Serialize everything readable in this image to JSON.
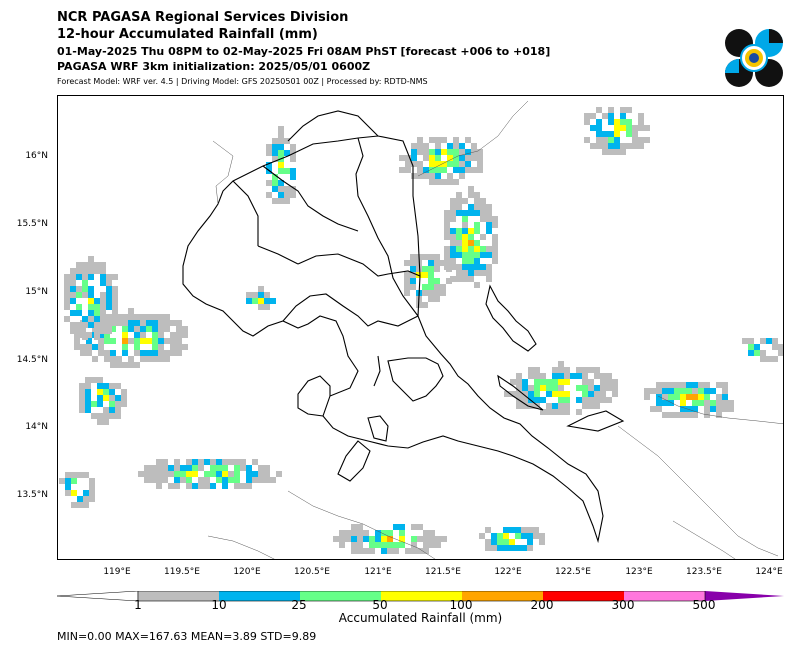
{
  "header": {
    "agency": "NCR PAGASA Regional Services Division",
    "product": "12-hour Accumulated Rainfall (mm)",
    "valid_period": "01-May-2025 Thu 08PM to 02-May-2025 Fri 08AM PhST [forecast +006 to +018]",
    "initialization": "PAGASA WRF 3km initialization: 2025/05/01 0600Z",
    "model_info": "Forecast Model: WRF ver. 4.5 | Driving Model: GFS 20250501 00Z | Processed by: RDTD-NMS"
  },
  "logo": {
    "icon": "pagasa-logo-icon"
  },
  "map": {
    "lat_labels": [
      "16°N",
      "15.5°N",
      "15°N",
      "14.5°N",
      "14°N",
      "13.5°N"
    ],
    "lon_labels": [
      "119°E",
      "119.5°E",
      "120°E",
      "120.5°E",
      "121°E",
      "121.5°E",
      "122°E",
      "122.5°E",
      "123°E",
      "123.5°E",
      "124°E"
    ]
  },
  "colorbar": {
    "title": "Accumulated Rainfall (mm)",
    "ticks": [
      "1",
      "10",
      "25",
      "50",
      "100",
      "200",
      "300",
      "500"
    ],
    "colors": [
      "#ffffff",
      "#bdbdbd",
      "#00b4ee",
      "#66ff88",
      "#ffff00",
      "#ffa500",
      "#ff0000",
      "#ff77dd",
      "#8800aa"
    ]
  },
  "stats": "MIN=0.00   MAX=167.63   MEAN=3.89   STD=9.89"
}
